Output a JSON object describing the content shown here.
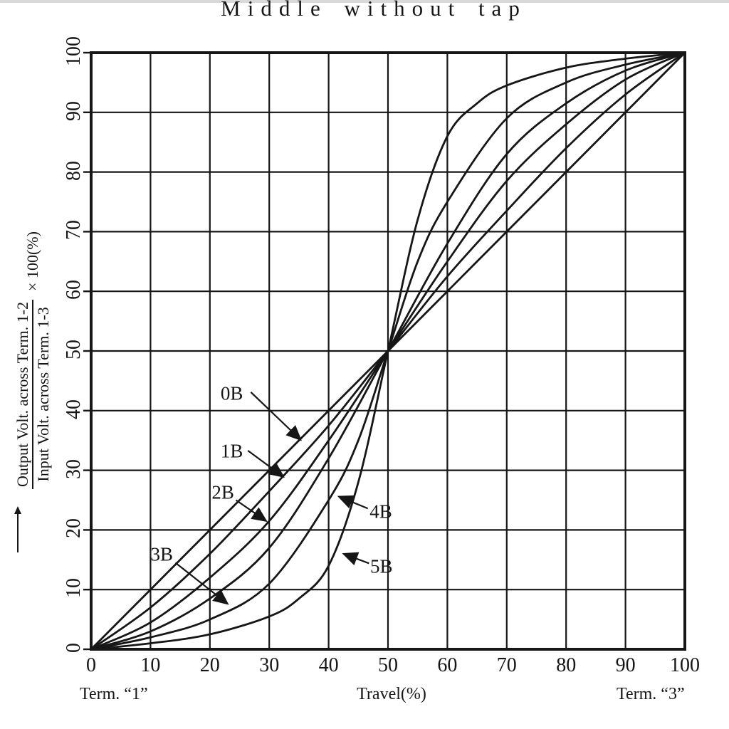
{
  "page": {
    "title": "Middle without tap"
  },
  "axes": {
    "x_caption": "Travel(%)",
    "x_left_caption": "Term. “1”",
    "x_right_caption": "Term. “3”",
    "y_label_numerator": "Output Volt. across Term. 1-2",
    "y_label_denominator": "Input Volt. across Term. 1-3",
    "y_label_suffix": "× 100(%)"
  },
  "chart_data": {
    "type": "line",
    "title": "Middle without tap",
    "xlabel": "Travel(%)",
    "ylabel": "Output Volt. across Term. 1-2 / Input Volt. across Term. 1-3 × 100(%)",
    "xlim": [
      0,
      100
    ],
    "ylim": [
      0,
      100
    ],
    "grid": true,
    "grid_step": 10,
    "x_ticks": [
      0,
      10,
      20,
      30,
      40,
      50,
      60,
      70,
      80,
      90,
      100
    ],
    "y_ticks": [
      0,
      10,
      20,
      30,
      40,
      50,
      60,
      70,
      80,
      90,
      100
    ],
    "line_color": "#161616",
    "series": [
      {
        "name": "0B",
        "points": [
          [
            0,
            0
          ],
          [
            10,
            10
          ],
          [
            20,
            20
          ],
          [
            30,
            30
          ],
          [
            40,
            40
          ],
          [
            50,
            50
          ],
          [
            60,
            60
          ],
          [
            70,
            70
          ],
          [
            80,
            80
          ],
          [
            90,
            90
          ],
          [
            100,
            100
          ]
        ]
      },
      {
        "name": "1B",
        "points": [
          [
            0,
            0
          ],
          [
            10,
            7
          ],
          [
            20,
            16
          ],
          [
            30,
            26.5
          ],
          [
            40,
            37.5
          ],
          [
            50,
            50
          ],
          [
            60,
            62.5
          ],
          [
            70,
            73.5
          ],
          [
            80,
            84
          ],
          [
            90,
            93
          ],
          [
            100,
            100
          ]
        ]
      },
      {
        "name": "2B",
        "points": [
          [
            0,
            0
          ],
          [
            10,
            4.5
          ],
          [
            20,
            12
          ],
          [
            30,
            21.5
          ],
          [
            40,
            35
          ],
          [
            50,
            50
          ],
          [
            60,
            65
          ],
          [
            70,
            78.5
          ],
          [
            80,
            88
          ],
          [
            90,
            95.5
          ],
          [
            100,
            100
          ]
        ]
      },
      {
        "name": "3B",
        "points": [
          [
            0,
            0
          ],
          [
            10,
            3
          ],
          [
            20,
            8.5
          ],
          [
            30,
            17
          ],
          [
            40,
            32
          ],
          [
            50,
            50
          ],
          [
            60,
            68
          ],
          [
            70,
            83
          ],
          [
            80,
            91.5
          ],
          [
            90,
            97
          ],
          [
            100,
            100
          ]
        ]
      },
      {
        "name": "4B",
        "points": [
          [
            0,
            0
          ],
          [
            10,
            2
          ],
          [
            20,
            5
          ],
          [
            30,
            11
          ],
          [
            40,
            25
          ],
          [
            45,
            35
          ],
          [
            50,
            50
          ],
          [
            55,
            65
          ],
          [
            60,
            75
          ],
          [
            70,
            89
          ],
          [
            80,
            95
          ],
          [
            90,
            98
          ],
          [
            100,
            100
          ]
        ]
      },
      {
        "name": "5B",
        "points": [
          [
            0,
            0
          ],
          [
            10,
            1
          ],
          [
            20,
            2.5
          ],
          [
            30,
            5.5
          ],
          [
            35,
            8.5
          ],
          [
            40,
            14
          ],
          [
            45,
            28
          ],
          [
            50,
            50
          ],
          [
            55,
            72
          ],
          [
            60,
            86
          ],
          [
            65,
            91.5
          ],
          [
            70,
            94.5
          ],
          [
            80,
            97.5
          ],
          [
            90,
            99
          ],
          [
            100,
            100
          ]
        ]
      }
    ],
    "annotations": [
      {
        "text": "0B",
        "label": [
          23.7,
          42.8
        ],
        "from": [
          26.9,
          43.1
        ],
        "to": [
          35.3,
          35.1
        ]
      },
      {
        "text": "1B",
        "label": [
          23.7,
          33.2
        ],
        "from": [
          26.4,
          33.3
        ],
        "to": [
          32.4,
          28.9
        ]
      },
      {
        "text": "2B",
        "label": [
          22.2,
          26.3
        ],
        "from": [
          24.4,
          25.0
        ],
        "to": [
          29.5,
          21.5
        ]
      },
      {
        "text": "3B",
        "label": [
          11.9,
          15.9
        ],
        "from": [
          14.2,
          14.5
        ],
        "to": [
          23.0,
          7.6
        ]
      },
      {
        "text": "4B",
        "label": [
          48.8,
          23.0
        ],
        "from": [
          46.6,
          23.6
        ],
        "to": [
          41.7,
          25.6
        ]
      },
      {
        "text": "5B",
        "label": [
          48.9,
          13.8
        ],
        "from": [
          46.8,
          14.4
        ],
        "to": [
          42.5,
          16.0
        ]
      }
    ]
  }
}
